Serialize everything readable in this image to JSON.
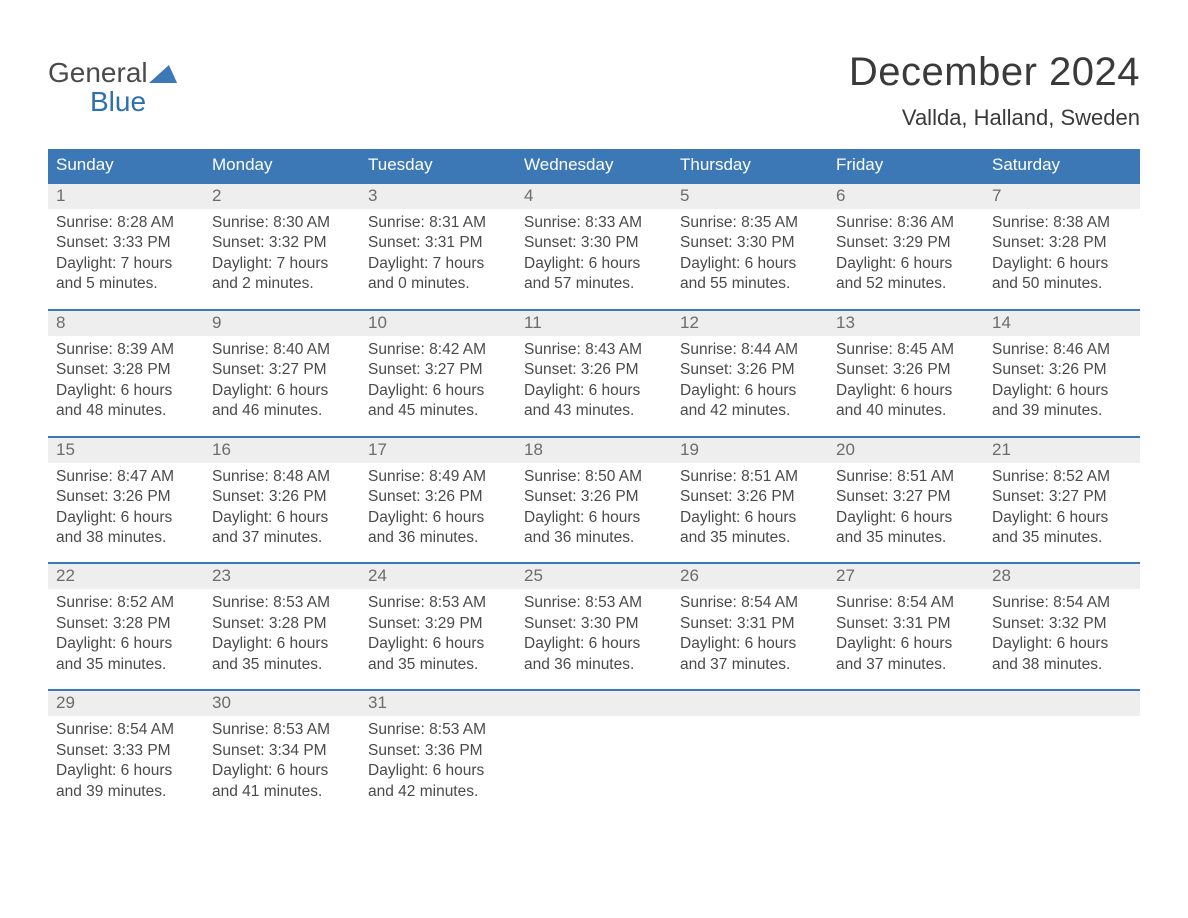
{
  "logo": {
    "line1": "General",
    "line2": "Blue"
  },
  "title": "December 2024",
  "subtitle": "Vallda, Halland, Sweden",
  "colors": {
    "header_bg": "#3b78b5",
    "header_text": "#ffffff",
    "row_divider": "#3b78b5",
    "daynum_bg": "#eeeeee",
    "body_text": "#4a4a4a",
    "page_bg": "#ffffff",
    "logo_accent": "#2e6fb0"
  },
  "layout": {
    "columns": 7,
    "rows": 5
  },
  "weekdays": [
    "Sunday",
    "Monday",
    "Tuesday",
    "Wednesday",
    "Thursday",
    "Friday",
    "Saturday"
  ],
  "weeks": [
    [
      {
        "num": "1",
        "sunrise": "8:28 AM",
        "sunset": "3:33 PM",
        "daylight_l1": "7 hours",
        "daylight_l2": "and 5 minutes."
      },
      {
        "num": "2",
        "sunrise": "8:30 AM",
        "sunset": "3:32 PM",
        "daylight_l1": "7 hours",
        "daylight_l2": "and 2 minutes."
      },
      {
        "num": "3",
        "sunrise": "8:31 AM",
        "sunset": "3:31 PM",
        "daylight_l1": "7 hours",
        "daylight_l2": "and 0 minutes."
      },
      {
        "num": "4",
        "sunrise": "8:33 AM",
        "sunset": "3:30 PM",
        "daylight_l1": "6 hours",
        "daylight_l2": "and 57 minutes."
      },
      {
        "num": "5",
        "sunrise": "8:35 AM",
        "sunset": "3:30 PM",
        "daylight_l1": "6 hours",
        "daylight_l2": "and 55 minutes."
      },
      {
        "num": "6",
        "sunrise": "8:36 AM",
        "sunset": "3:29 PM",
        "daylight_l1": "6 hours",
        "daylight_l2": "and 52 minutes."
      },
      {
        "num": "7",
        "sunrise": "8:38 AM",
        "sunset": "3:28 PM",
        "daylight_l1": "6 hours",
        "daylight_l2": "and 50 minutes."
      }
    ],
    [
      {
        "num": "8",
        "sunrise": "8:39 AM",
        "sunset": "3:28 PM",
        "daylight_l1": "6 hours",
        "daylight_l2": "and 48 minutes."
      },
      {
        "num": "9",
        "sunrise": "8:40 AM",
        "sunset": "3:27 PM",
        "daylight_l1": "6 hours",
        "daylight_l2": "and 46 minutes."
      },
      {
        "num": "10",
        "sunrise": "8:42 AM",
        "sunset": "3:27 PM",
        "daylight_l1": "6 hours",
        "daylight_l2": "and 45 minutes."
      },
      {
        "num": "11",
        "sunrise": "8:43 AM",
        "sunset": "3:26 PM",
        "daylight_l1": "6 hours",
        "daylight_l2": "and 43 minutes."
      },
      {
        "num": "12",
        "sunrise": "8:44 AM",
        "sunset": "3:26 PM",
        "daylight_l1": "6 hours",
        "daylight_l2": "and 42 minutes."
      },
      {
        "num": "13",
        "sunrise": "8:45 AM",
        "sunset": "3:26 PM",
        "daylight_l1": "6 hours",
        "daylight_l2": "and 40 minutes."
      },
      {
        "num": "14",
        "sunrise": "8:46 AM",
        "sunset": "3:26 PM",
        "daylight_l1": "6 hours",
        "daylight_l2": "and 39 minutes."
      }
    ],
    [
      {
        "num": "15",
        "sunrise": "8:47 AM",
        "sunset": "3:26 PM",
        "daylight_l1": "6 hours",
        "daylight_l2": "and 38 minutes."
      },
      {
        "num": "16",
        "sunrise": "8:48 AM",
        "sunset": "3:26 PM",
        "daylight_l1": "6 hours",
        "daylight_l2": "and 37 minutes."
      },
      {
        "num": "17",
        "sunrise": "8:49 AM",
        "sunset": "3:26 PM",
        "daylight_l1": "6 hours",
        "daylight_l2": "and 36 minutes."
      },
      {
        "num": "18",
        "sunrise": "8:50 AM",
        "sunset": "3:26 PM",
        "daylight_l1": "6 hours",
        "daylight_l2": "and 36 minutes."
      },
      {
        "num": "19",
        "sunrise": "8:51 AM",
        "sunset": "3:26 PM",
        "daylight_l1": "6 hours",
        "daylight_l2": "and 35 minutes."
      },
      {
        "num": "20",
        "sunrise": "8:51 AM",
        "sunset": "3:27 PM",
        "daylight_l1": "6 hours",
        "daylight_l2": "and 35 minutes."
      },
      {
        "num": "21",
        "sunrise": "8:52 AM",
        "sunset": "3:27 PM",
        "daylight_l1": "6 hours",
        "daylight_l2": "and 35 minutes."
      }
    ],
    [
      {
        "num": "22",
        "sunrise": "8:52 AM",
        "sunset": "3:28 PM",
        "daylight_l1": "6 hours",
        "daylight_l2": "and 35 minutes."
      },
      {
        "num": "23",
        "sunrise": "8:53 AM",
        "sunset": "3:28 PM",
        "daylight_l1": "6 hours",
        "daylight_l2": "and 35 minutes."
      },
      {
        "num": "24",
        "sunrise": "8:53 AM",
        "sunset": "3:29 PM",
        "daylight_l1": "6 hours",
        "daylight_l2": "and 35 minutes."
      },
      {
        "num": "25",
        "sunrise": "8:53 AM",
        "sunset": "3:30 PM",
        "daylight_l1": "6 hours",
        "daylight_l2": "and 36 minutes."
      },
      {
        "num": "26",
        "sunrise": "8:54 AM",
        "sunset": "3:31 PM",
        "daylight_l1": "6 hours",
        "daylight_l2": "and 37 minutes."
      },
      {
        "num": "27",
        "sunrise": "8:54 AM",
        "sunset": "3:31 PM",
        "daylight_l1": "6 hours",
        "daylight_l2": "and 37 minutes."
      },
      {
        "num": "28",
        "sunrise": "8:54 AM",
        "sunset": "3:32 PM",
        "daylight_l1": "6 hours",
        "daylight_l2": "and 38 minutes."
      }
    ],
    [
      {
        "num": "29",
        "sunrise": "8:54 AM",
        "sunset": "3:33 PM",
        "daylight_l1": "6 hours",
        "daylight_l2": "and 39 minutes."
      },
      {
        "num": "30",
        "sunrise": "8:53 AM",
        "sunset": "3:34 PM",
        "daylight_l1": "6 hours",
        "daylight_l2": "and 41 minutes."
      },
      {
        "num": "31",
        "sunrise": "8:53 AM",
        "sunset": "3:36 PM",
        "daylight_l1": "6 hours",
        "daylight_l2": "and 42 minutes."
      },
      null,
      null,
      null,
      null
    ]
  ],
  "labels": {
    "sunrise_prefix": "Sunrise: ",
    "sunset_prefix": "Sunset: ",
    "daylight_prefix": "Daylight: "
  }
}
